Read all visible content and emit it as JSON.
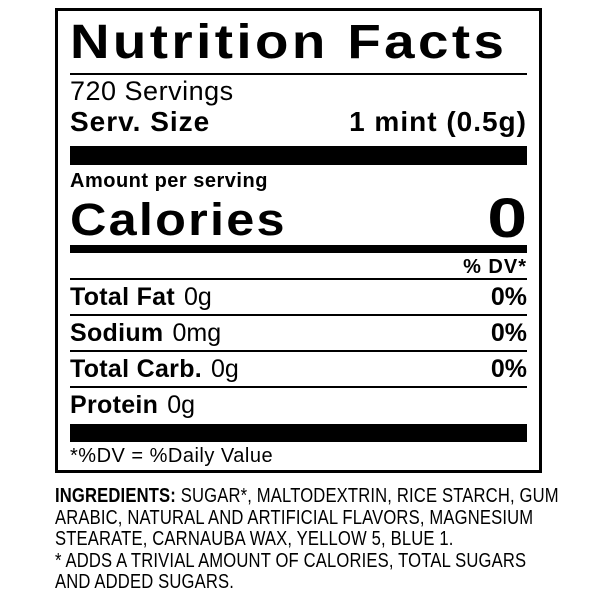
{
  "label": {
    "title": "Nutrition Facts",
    "servings": "720 Servings",
    "serving_size_label": "Serv. Size",
    "serving_size_value": "1 mint (0.5g)",
    "amount_per_serving": "Amount per serving",
    "calories_label": "Calories",
    "calories_value": "0",
    "dv_header": "% DV*",
    "rows": [
      {
        "name": "Total Fat",
        "amount": "0g",
        "dv": "0%"
      },
      {
        "name": "Sodium",
        "amount": "0mg",
        "dv": "0%"
      },
      {
        "name": "Total Carb.",
        "amount": "0g",
        "dv": "0%"
      },
      {
        "name": "Protein",
        "amount": "0g",
        "dv": ""
      }
    ],
    "footnote": "*%DV = %Daily Value"
  },
  "ingredients": {
    "heading": "INGREDIENTS:",
    "line1_rest": "SUGAR*, MALTODEXTRIN, RICE STARCH, GUM",
    "line2": "ARABIC, NATURAL AND ARTIFICIAL FLAVORS, MAGNESIUM",
    "line3": "STEARATE, CARNAUBA WAX, YELLOW 5, BLUE 1.",
    "line4": "* ADDS A TRIVIAL AMOUNT OF CALORIES, TOTAL SUGARS",
    "line5": "AND ADDED SUGARS."
  },
  "colors": {
    "text": "#000000",
    "background": "#ffffff"
  }
}
